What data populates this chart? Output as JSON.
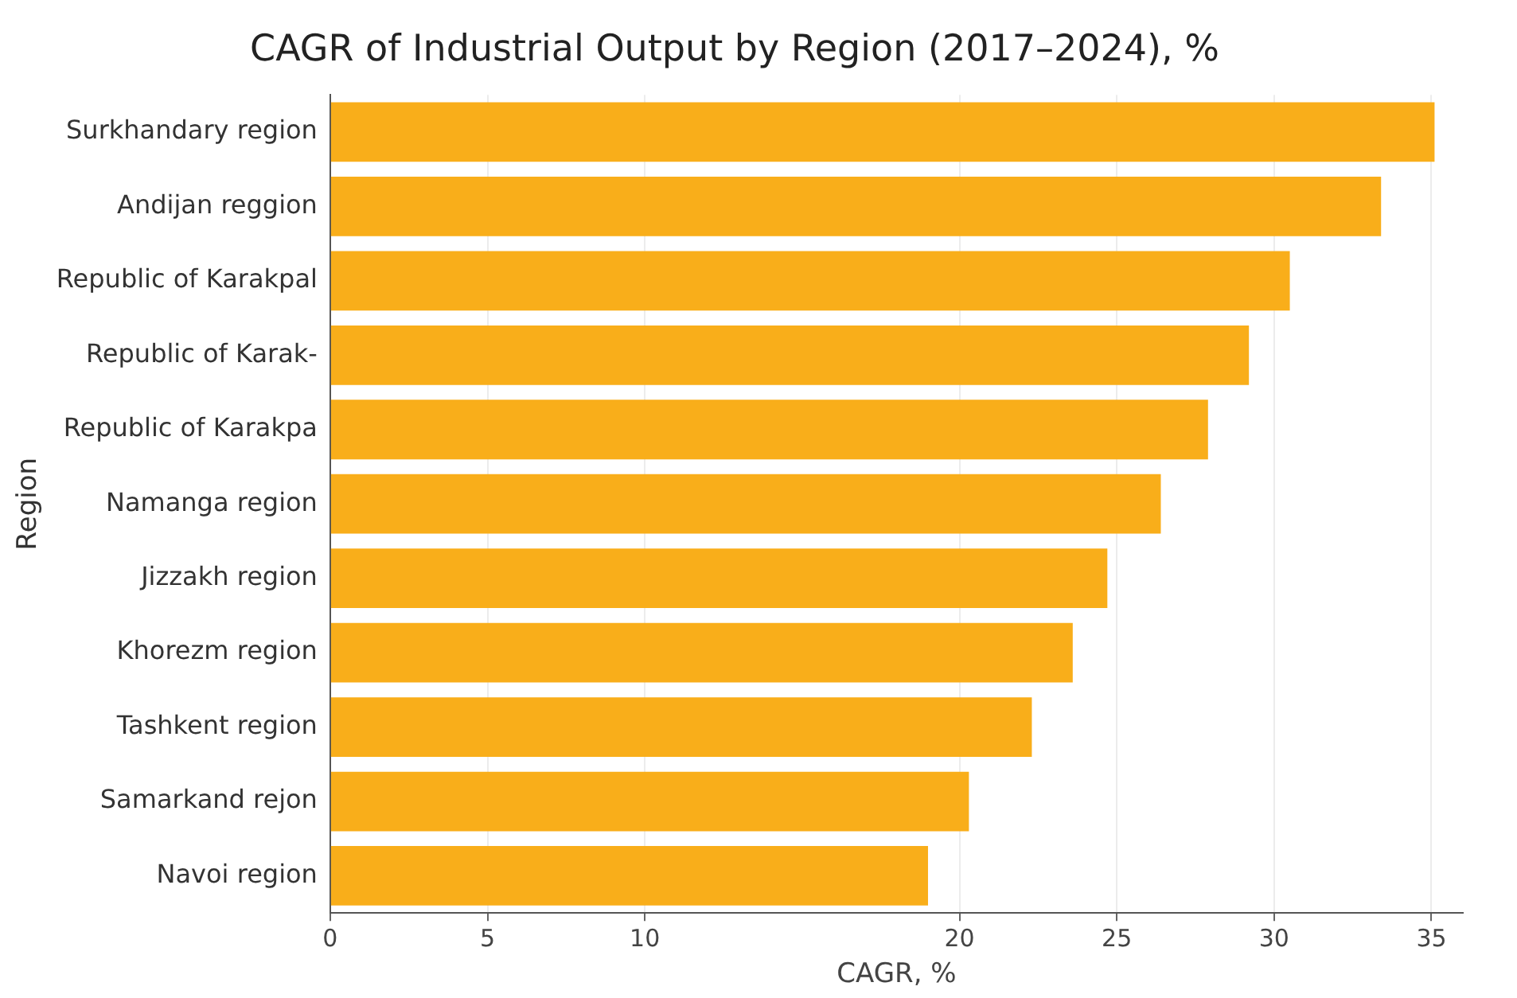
{
  "chart_data": {
    "type": "bar",
    "orientation": "horizontal",
    "title": "CAGR of Industrial Output by Region (2017–2024), %",
    "xlabel": "CAGR, %",
    "ylabel": "Region",
    "categories": [
      "Surkhandary region",
      "Andijan reggion",
      "Republic of Karakpal",
      "Republic of Karak-",
      "Republic of Karakpa",
      "Namanga region",
      "Jizzakh region",
      "Khorezm region",
      "Tashkent region",
      "Samarkand rejon",
      "Navoi region"
    ],
    "values": [
      35.1,
      33.4,
      30.5,
      29.2,
      27.9,
      26.4,
      24.7,
      23.6,
      22.3,
      20.3,
      19.0
    ],
    "color": "#f9ae1a",
    "xlim": [
      0,
      36
    ],
    "xticks": [
      0,
      5,
      10,
      20,
      25,
      30,
      35
    ],
    "grid": "x"
  }
}
